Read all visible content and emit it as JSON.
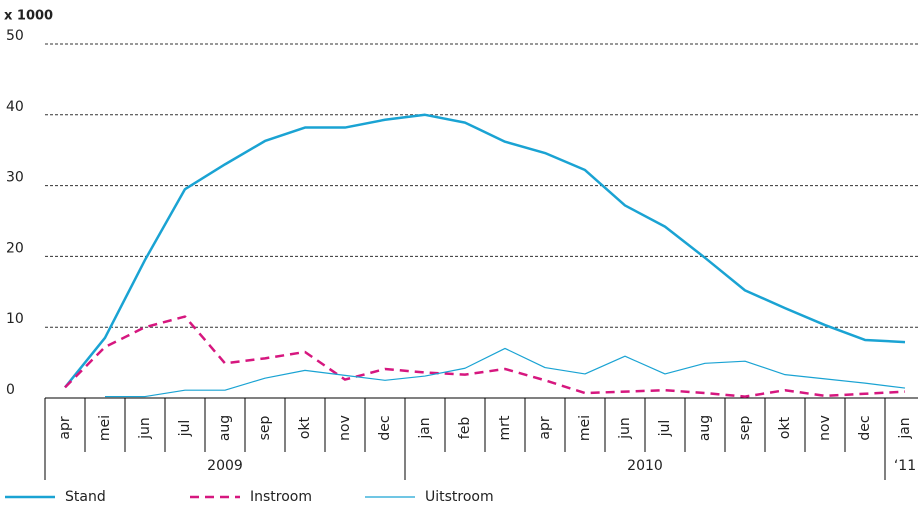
{
  "chart_data": {
    "type": "line",
    "y_label": "x 1000",
    "categories": [
      "apr",
      "mei",
      "jun",
      "jul",
      "aug",
      "sep",
      "okt",
      "nov",
      "dec",
      "jan",
      "feb",
      "mrt",
      "apr",
      "mei",
      "jun",
      "jul",
      "aug",
      "sep",
      "okt",
      "nov",
      "dec",
      "jan"
    ],
    "x_groups": [
      {
        "label": "2009",
        "span": 9
      },
      {
        "label": "2010",
        "span": 12
      },
      {
        "label": "‘11",
        "span": 1
      }
    ],
    "series": [
      {
        "name": "Stand",
        "color": "#1aa3d3",
        "dashed": false,
        "width": 2.5,
        "values": [
          1.5,
          8.5,
          19.5,
          29.5,
          33,
          36.3,
          38.2,
          38.2,
          39.3,
          40,
          38.9,
          36.2,
          34.6,
          32.2,
          27.2,
          24.2,
          19.8,
          15.2,
          12.7,
          10.3,
          8.2,
          7.9
        ]
      },
      {
        "name": "Instroom",
        "color": "#d6177f",
        "dashed": true,
        "width": 2.5,
        "values": [
          1.5,
          7.2,
          10,
          11.5,
          4.9,
          5.6,
          6.5,
          2.6,
          4.1,
          3.6,
          3.3,
          4.1,
          2.5,
          0.7,
          0.9,
          1.1,
          0.7,
          0.2,
          1.1,
          0.3,
          0.6,
          0.9
        ]
      },
      {
        "name": "Uitstroom",
        "color": "#1aa3d3",
        "dashed": false,
        "width": 1.2,
        "values": [
          null,
          0.2,
          0.2,
          1.1,
          1.1,
          2.8,
          3.9,
          3.2,
          2.5,
          3.1,
          4.2,
          7.0,
          4.3,
          3.4,
          5.9,
          3.4,
          4.9,
          5.2,
          3.3,
          2.7,
          2.1,
          1.4
        ]
      }
    ],
    "ylim": [
      0,
      50
    ],
    "yticks": [
      0,
      10,
      20,
      30,
      40,
      50
    ],
    "grid": true
  }
}
